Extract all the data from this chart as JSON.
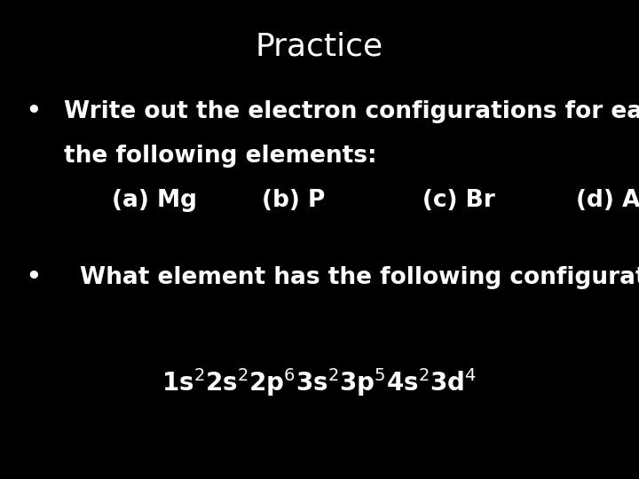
{
  "background_color": "#000000",
  "text_color": "#ffffff",
  "title": "Practice",
  "title_fontsize": 26,
  "bullet1_line1": "Write out the electron configurations for each of",
  "bullet1_line2": "the following elements:",
  "bullet1_indent": "(a) Mg        (b) P            (c) Br          (d) Al",
  "bullet2_line1": "What element has the following configuration:",
  "body_fontsize": 19,
  "config_fontsize": 20,
  "bullet_char": "•",
  "font_family": "sans-serif"
}
